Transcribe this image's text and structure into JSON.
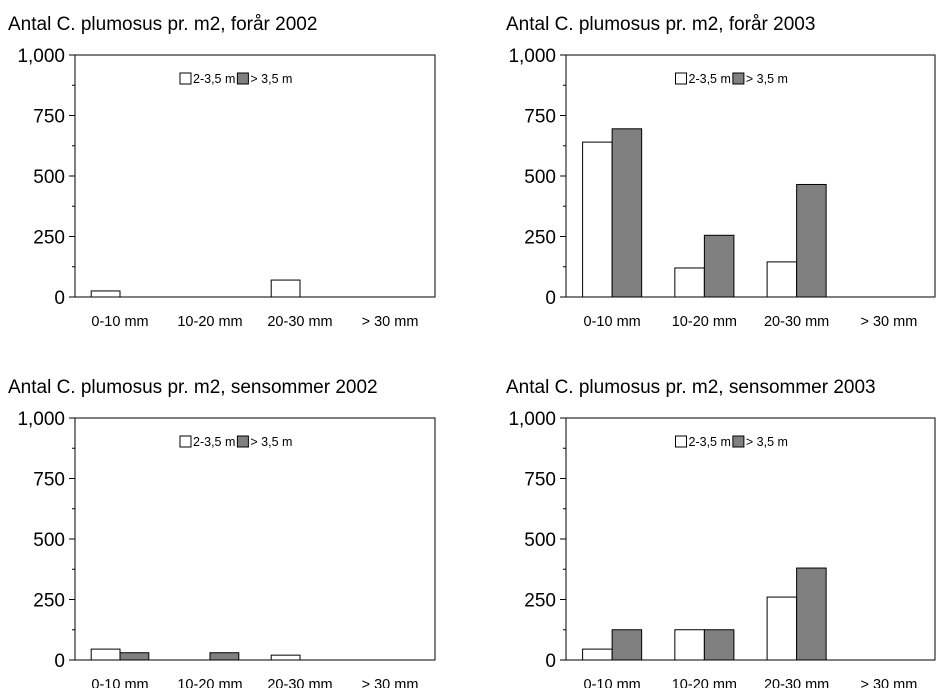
{
  "chart_data": [
    {
      "type": "bar",
      "title": "Antal C. plumosus pr. m2, forår 2002",
      "categories": [
        "0-10 mm",
        "10-20 mm",
        "20-30 mm",
        "> 30 mm"
      ],
      "series": [
        {
          "name": "2-3,5 m",
          "values": [
            25,
            0,
            70,
            0
          ]
        },
        {
          "name": "> 3,5 m",
          "values": [
            0,
            0,
            0,
            0
          ]
        }
      ],
      "ylim": [
        0,
        1000
      ],
      "yticks": [
        "0",
        "250",
        "500",
        "750",
        "1,000"
      ],
      "legend": "top-center",
      "grid": false
    },
    {
      "type": "bar",
      "title": "Antal C. plumosus pr. m2, forår 2003",
      "categories": [
        "0-10 mm",
        "10-20 mm",
        "20-30 mm",
        "> 30 mm"
      ],
      "series": [
        {
          "name": "2-3,5 m",
          "values": [
            640,
            120,
            145,
            0
          ]
        },
        {
          "name": "> 3,5 m",
          "values": [
            695,
            255,
            465,
            0
          ]
        }
      ],
      "ylim": [
        0,
        1000
      ],
      "yticks": [
        "0",
        "250",
        "500",
        "750",
        "1,000"
      ],
      "legend": "top-center",
      "grid": false
    },
    {
      "type": "bar",
      "title": "Antal C. plumosus pr. m2, sensommer 2002",
      "categories": [
        "0-10 mm",
        "10-20 mm",
        "20-30 mm",
        "> 30 mm"
      ],
      "series": [
        {
          "name": "2-3,5 m",
          "values": [
            45,
            0,
            20,
            0
          ]
        },
        {
          "name": "> 3,5 m",
          "values": [
            30,
            30,
            0,
            0
          ]
        }
      ],
      "ylim": [
        0,
        1000
      ],
      "yticks": [
        "0",
        "250",
        "500",
        "750",
        "1,000"
      ],
      "legend": "top-center",
      "grid": false
    },
    {
      "type": "bar",
      "title": "Antal C. plumosus pr. m2, sensommer 2003",
      "categories": [
        "0-10 mm",
        "10-20 mm",
        "20-30 mm",
        "> 30 mm"
      ],
      "series": [
        {
          "name": "2-3,5 m",
          "values": [
            45,
            125,
            260,
            0
          ]
        },
        {
          "name": "> 3,5 m",
          "values": [
            125,
            125,
            380,
            0
          ]
        }
      ],
      "ylim": [
        0,
        1000
      ],
      "yticks": [
        "0",
        "250",
        "500",
        "750",
        "1,000"
      ],
      "legend": "top-center",
      "grid": false
    }
  ],
  "colors": {
    "series_1": "#ffffff",
    "series_2": "#808080",
    "stroke": "#000000"
  }
}
